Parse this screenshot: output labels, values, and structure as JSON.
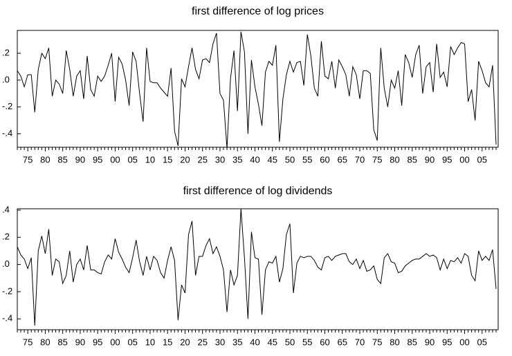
{
  "chart_data": [
    {
      "type": "line",
      "title": "first difference of log prices",
      "color": "#000000",
      "categories": [
        null,
        null,
        null,
        "75",
        null,
        null,
        null,
        null,
        "80",
        null,
        null,
        null,
        null,
        "85",
        null,
        null,
        null,
        null,
        "90",
        null,
        null,
        null,
        null,
        "95",
        null,
        null,
        null,
        null,
        "00",
        null,
        null,
        null,
        null,
        "05",
        null,
        null,
        null,
        null,
        "10",
        null,
        null,
        null,
        null,
        "15",
        null,
        null,
        null,
        null,
        "20",
        null,
        null,
        null,
        null,
        "25",
        null,
        null,
        null,
        null,
        "30",
        null,
        null,
        null,
        null,
        "35",
        null,
        null,
        null,
        null,
        "40",
        null,
        null,
        null,
        null,
        "45",
        null,
        null,
        null,
        null,
        "50",
        null,
        null,
        null,
        null,
        "55",
        null,
        null,
        null,
        null,
        "60",
        null,
        null,
        null,
        null,
        "65",
        null,
        null,
        null,
        null,
        "70",
        null,
        null,
        null,
        null,
        "75",
        null,
        null,
        null,
        null,
        "80",
        null,
        null,
        null,
        null,
        "85",
        null,
        null,
        null,
        null,
        "90",
        null,
        null,
        null,
        null,
        "95",
        null,
        null,
        null,
        null,
        "00",
        null,
        null,
        null,
        null,
        "05",
        null,
        null,
        null,
        null
      ],
      "values": [
        0.07,
        0.03,
        -0.05,
        0.04,
        0.04,
        -0.24,
        0.08,
        0.2,
        0.16,
        0.24,
        -0.12,
        0.0,
        -0.03,
        -0.1,
        0.22,
        0.08,
        -0.12,
        0.03,
        0.07,
        -0.14,
        0.18,
        -0.07,
        -0.12,
        0.03,
        -0.01,
        0.03,
        0.11,
        0.2,
        -0.16,
        0.17,
        0.12,
        0.0,
        -0.19,
        0.21,
        0.14,
        -0.1,
        -0.31,
        0.24,
        -0.01,
        -0.02,
        -0.02,
        -0.06,
        -0.09,
        -0.12,
        0.09,
        -0.38,
        -0.49,
        0.01,
        -0.05,
        0.1,
        0.24,
        0.08,
        0.01,
        0.15,
        0.16,
        0.13,
        0.27,
        0.35,
        -0.1,
        -0.15,
        -0.51,
        0.01,
        0.22,
        -0.23,
        0.36,
        0.21,
        -0.4,
        0.15,
        -0.05,
        -0.18,
        -0.34,
        0.06,
        0.14,
        0.11,
        0.26,
        -0.46,
        -0.14,
        0.04,
        0.14,
        0.06,
        0.13,
        0.14,
        -0.04,
        0.34,
        0.18,
        -0.06,
        -0.12,
        0.29,
        0.03,
        0.01,
        0.14,
        -0.06,
        0.15,
        0.1,
        0.04,
        -0.12,
        0.1,
        0.04,
        -0.14,
        0.07,
        0.07,
        0.05,
        -0.37,
        -0.45,
        0.24,
        -0.06,
        -0.2,
        0.0,
        -0.06,
        0.07,
        -0.19,
        0.19,
        0.13,
        0.02,
        0.19,
        0.26,
        -0.1,
        0.1,
        0.13,
        -0.09,
        0.27,
        0.02,
        0.06,
        -0.05,
        0.25,
        0.19,
        0.24,
        0.28,
        0.27,
        -0.16,
        -0.07,
        -0.3,
        0.14,
        0.07,
        -0.02,
        -0.05,
        0.11,
        -0.48
      ],
      "ylim": [
        -0.5,
        0.37
      ],
      "yticks": [
        {
          "value": 0.2,
          "label": ".2"
        },
        {
          "value": 0.0,
          "label": ".0"
        },
        {
          "value": -0.2,
          "label": "-.2"
        },
        {
          "value": -0.4,
          "label": "-.4"
        }
      ]
    },
    {
      "type": "line",
      "title": "first difference of log dividends",
      "color": "#000000",
      "categories": [
        null,
        null,
        null,
        "75",
        null,
        null,
        null,
        null,
        "80",
        null,
        null,
        null,
        null,
        "85",
        null,
        null,
        null,
        null,
        "90",
        null,
        null,
        null,
        null,
        "95",
        null,
        null,
        null,
        null,
        "00",
        null,
        null,
        null,
        null,
        "05",
        null,
        null,
        null,
        null,
        "10",
        null,
        null,
        null,
        null,
        "15",
        null,
        null,
        null,
        null,
        "20",
        null,
        null,
        null,
        null,
        "25",
        null,
        null,
        null,
        null,
        "30",
        null,
        null,
        null,
        null,
        "35",
        null,
        null,
        null,
        null,
        "40",
        null,
        null,
        null,
        null,
        "45",
        null,
        null,
        null,
        null,
        "50",
        null,
        null,
        null,
        null,
        "55",
        null,
        null,
        null,
        null,
        "60",
        null,
        null,
        null,
        null,
        "65",
        null,
        null,
        null,
        null,
        "70",
        null,
        null,
        null,
        null,
        "75",
        null,
        null,
        null,
        null,
        "80",
        null,
        null,
        null,
        null,
        "85",
        null,
        null,
        null,
        null,
        "90",
        null,
        null,
        null,
        null,
        "95",
        null,
        null,
        null,
        null,
        "00",
        null,
        null,
        null,
        null,
        "05",
        null,
        null,
        null,
        null
      ],
      "values": [
        0.13,
        0.07,
        0.04,
        -0.03,
        0.05,
        -0.45,
        0.1,
        0.21,
        0.08,
        0.26,
        -0.08,
        0.04,
        0.02,
        -0.14,
        -0.08,
        0.1,
        -0.13,
        0.0,
        0.04,
        -0.04,
        0.14,
        -0.04,
        -0.04,
        -0.06,
        -0.07,
        0.02,
        0.07,
        0.04,
        0.19,
        0.09,
        0.04,
        -0.02,
        -0.06,
        0.05,
        0.18,
        0.02,
        -0.08,
        0.06,
        -0.04,
        0.06,
        0.03,
        -0.06,
        -0.1,
        0.03,
        0.13,
        0.03,
        -0.41,
        -0.15,
        -0.21,
        0.22,
        0.32,
        -0.08,
        0.06,
        0.06,
        0.14,
        0.19,
        0.08,
        0.13,
        0.06,
        -0.04,
        -0.35,
        -0.04,
        -0.15,
        -0.08,
        0.41,
        0.05,
        -0.4,
        0.24,
        0.05,
        0.04,
        -0.37,
        -0.04,
        0.02,
        0.01,
        0.06,
        -0.13,
        -0.03,
        0.22,
        0.3,
        -0.21,
        0.01,
        0.06,
        0.05,
        0.06,
        0.06,
        0.03,
        -0.02,
        -0.04,
        0.05,
        0.06,
        0.03,
        0.06,
        0.07,
        0.08,
        0.08,
        0.02,
        0.0,
        0.04,
        -0.03,
        0.03,
        -0.05,
        -0.04,
        -0.01,
        -0.11,
        -0.14,
        0.05,
        0.08,
        0.02,
        0.01,
        -0.06,
        -0.05,
        -0.01,
        0.01,
        0.03,
        0.04,
        0.04,
        0.06,
        0.08,
        0.06,
        0.07,
        0.05,
        -0.04,
        0.04,
        -0.03,
        0.03,
        0.02,
        0.05,
        0.01,
        0.08,
        0.06,
        -0.08,
        -0.12,
        0.1,
        0.03,
        0.06,
        0.03,
        0.11,
        -0.18
      ],
      "ylim": [
        -0.48,
        0.41
      ],
      "yticks": [
        {
          "value": 0.4,
          "label": ".4"
        },
        {
          "value": 0.2,
          "label": ".2"
        },
        {
          "value": 0.0,
          "label": ".0"
        },
        {
          "value": -0.2,
          "label": "-.2"
        },
        {
          "value": -0.4,
          "label": "-.4"
        }
      ]
    }
  ]
}
